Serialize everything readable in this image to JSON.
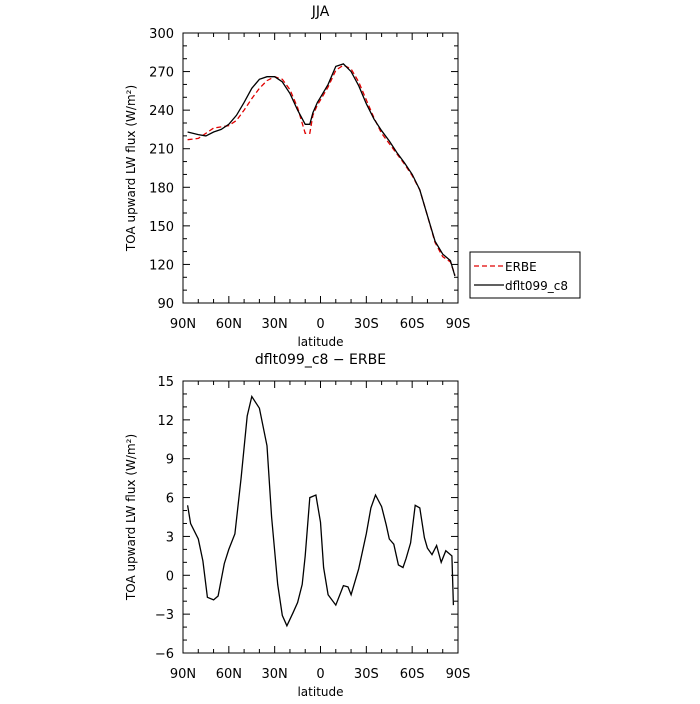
{
  "chart_data": [
    {
      "type": "line",
      "title": "JJA",
      "xlabel": "latitude",
      "ylabel": "TOA upward LW flux (W/m²)",
      "xlim": [
        90,
        -90
      ],
      "ylim": [
        90,
        300
      ],
      "xticks": [
        90,
        60,
        30,
        0,
        -30,
        -60,
        -90
      ],
      "xtick_labels": [
        "90N",
        "60N",
        "30N",
        "0",
        "30S",
        "60S",
        "90S"
      ],
      "yticks": [
        90,
        120,
        150,
        180,
        210,
        240,
        270,
        300
      ],
      "ytick_labels": [
        "90",
        "120",
        "150",
        "180",
        "210",
        "240",
        "270",
        "300"
      ],
      "grid": false,
      "legend": "right",
      "series": [
        {
          "name": "ERBE",
          "color": "#e00000",
          "dash": "dashed",
          "x": [
            87,
            80,
            75,
            70,
            65,
            60,
            55,
            50,
            45,
            40,
            35,
            30,
            25,
            20,
            15,
            10,
            7,
            5,
            2,
            0,
            -5,
            -10,
            -15,
            -20,
            -25,
            -30,
            -35,
            -40,
            -45,
            -50,
            -55,
            -60,
            -65,
            -70,
            -75,
            -80,
            -85,
            -88
          ],
          "y": [
            217,
            218,
            222,
            226,
            227,
            228,
            232,
            240,
            249,
            257,
            263,
            266,
            264,
            256,
            242,
            222,
            222,
            236,
            244,
            248,
            258,
            271,
            275,
            272,
            262,
            248,
            234,
            222,
            214,
            206,
            198,
            189,
            178,
            158,
            137,
            126,
            122,
            112
          ]
        },
        {
          "name": "dflt099_c8",
          "color": "#000000",
          "dash": "solid",
          "x": [
            87,
            80,
            75,
            70,
            65,
            60,
            55,
            50,
            45,
            40,
            35,
            30,
            25,
            20,
            15,
            10,
            7,
            5,
            2,
            0,
            -5,
            -10,
            -15,
            -20,
            -25,
            -30,
            -35,
            -40,
            -45,
            -50,
            -55,
            -60,
            -65,
            -70,
            -75,
            -80,
            -85,
            -88
          ],
          "y": [
            223,
            221,
            220,
            223,
            225,
            229,
            236,
            246,
            257,
            264,
            266,
            266,
            262,
            253,
            240,
            229,
            229,
            238,
            246,
            250,
            260,
            274,
            276,
            270,
            259,
            245,
            233,
            224,
            216,
            207,
            199,
            190,
            178,
            158,
            138,
            128,
            123,
            111
          ]
        }
      ]
    },
    {
      "type": "line",
      "title": "dflt099_c8 − ERBE",
      "xlabel": "latitude",
      "ylabel": "TOA upward LW flux (W/m²)",
      "xlim": [
        90,
        -90
      ],
      "ylim": [
        -6,
        15
      ],
      "xticks": [
        90,
        60,
        30,
        0,
        -30,
        -60,
        -90
      ],
      "xtick_labels": [
        "90N",
        "60N",
        "30N",
        "0",
        "30S",
        "60S",
        "90S"
      ],
      "yticks": [
        -6,
        -3,
        0,
        3,
        6,
        9,
        12,
        15
      ],
      "ytick_labels": [
        "−6",
        "−3",
        "0",
        "3",
        "6",
        "9",
        "12",
        "15"
      ],
      "grid": false,
      "series": [
        {
          "color": "#000000",
          "dash": "solid",
          "x": [
            87,
            85,
            80,
            77,
            74,
            70,
            67,
            63,
            60,
            56,
            52,
            48,
            45,
            40,
            35,
            32,
            28,
            25,
            22,
            18,
            15,
            12,
            10,
            7,
            3,
            2,
            0,
            -2,
            -5,
            -10,
            -15,
            -18,
            -20,
            -25,
            -30,
            -33,
            -36,
            -40,
            -43,
            -45,
            -48,
            -51,
            -54,
            -56,
            -59,
            -62,
            -65,
            -68,
            -70,
            -73,
            -76,
            -79,
            -82,
            -86,
            -87
          ],
          "y": [
            5.4,
            4.0,
            2.8,
            1.1,
            -1.7,
            -1.9,
            -1.6,
            0.9,
            2.0,
            3.2,
            7.5,
            12.3,
            13.8,
            12.9,
            10.0,
            4.5,
            -0.7,
            -3.1,
            -3.9,
            -2.9,
            -2.1,
            -0.7,
            1.5,
            6.0,
            6.2,
            5.5,
            4.1,
            0.6,
            -1.5,
            -2.3,
            -0.8,
            -0.9,
            -1.5,
            0.5,
            3.2,
            5.2,
            6.2,
            5.3,
            3.9,
            2.8,
            2.4,
            0.8,
            0.6,
            1.3,
            2.5,
            5.4,
            5.2,
            2.9,
            2.1,
            1.6,
            2.3,
            1.0,
            1.9,
            1.5,
            -2.3
          ]
        }
      ]
    }
  ]
}
